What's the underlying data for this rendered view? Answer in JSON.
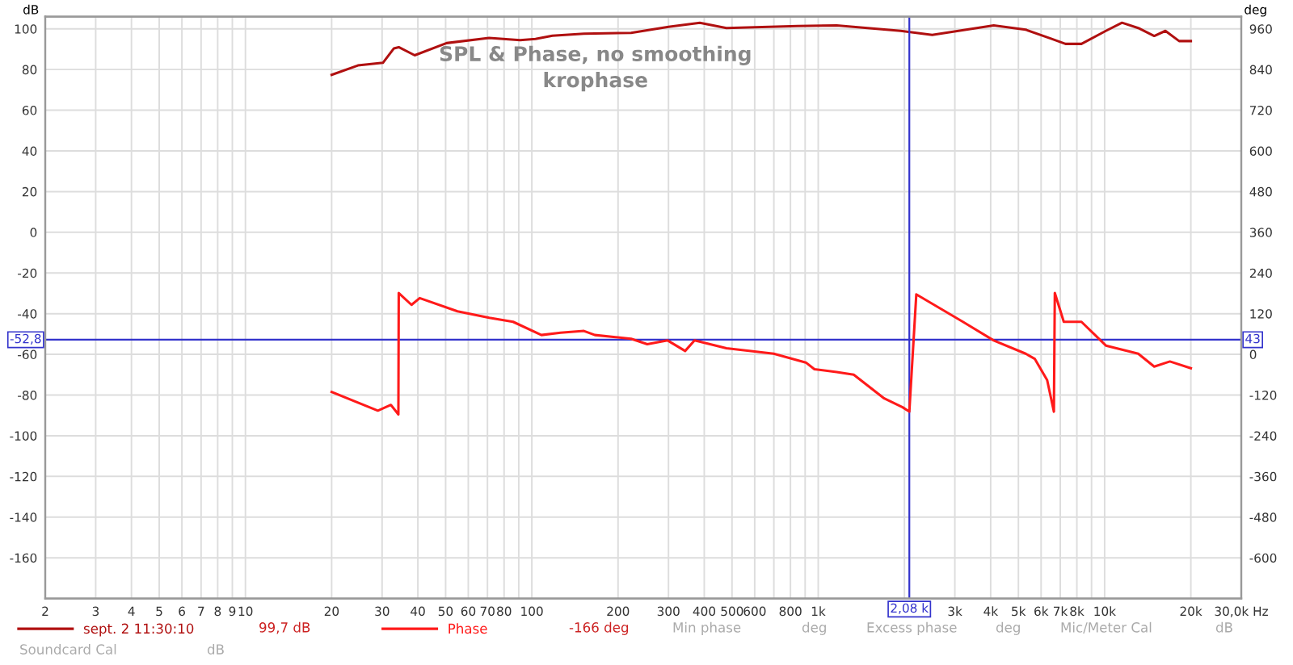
{
  "chart_data": {
    "type": "line",
    "title": "SPL & Phase, no smoothing",
    "subtitle": "krophase",
    "ylabel": "dB",
    "y2label": "deg",
    "log": "x",
    "grid": true,
    "legend": "bottom",
    "marker": "none",
    "line_style": "solid",
    "xlim": [
      2,
      30000
    ],
    "xticks": [
      2,
      3,
      4,
      5,
      6,
      7,
      8,
      9,
      10,
      20,
      30,
      40,
      50,
      60,
      70,
      80,
      {
        "value": 90,
        "label": null
      },
      100,
      200,
      300,
      400,
      500,
      600,
      {
        "value": 700,
        "label": null
      },
      800,
      {
        "value": 900,
        "label": null
      },
      {
        "value": 1000,
        "label": "1k"
      },
      {
        "value": 2000,
        "label": null
      },
      {
        "value": 3000,
        "label": "3k"
      },
      {
        "value": 4000,
        "label": "4k"
      },
      {
        "value": 5000,
        "label": "5k"
      },
      {
        "value": 6000,
        "label": "6k"
      },
      {
        "value": 7000,
        "label": "7k"
      },
      {
        "value": 8000,
        "label": "8k"
      },
      {
        "value": 9000,
        "label": null
      },
      {
        "value": 10000,
        "label": "10k"
      },
      {
        "value": 20000,
        "label": "20k"
      },
      {
        "value": 30000,
        "label": "30,0k Hz"
      }
    ],
    "ylim": [
      -180,
      106
    ],
    "yticks": [
      100,
      80,
      60,
      40,
      20,
      0,
      -20,
      -40,
      -60,
      -80,
      -100,
      -120,
      -140,
      -160
    ],
    "y2lim": [
      -720,
      996
    ],
    "y2ticks": [
      960,
      840,
      720,
      600,
      480,
      360,
      240,
      120,
      0,
      -120,
      -240,
      -360,
      -480,
      -600
    ],
    "series": [
      {
        "name": "sept. 2 11:30:10",
        "color": "#b01010",
        "x": [
          20,
          24.7,
          30.2,
          33,
          34.3,
          39,
          50.4,
          70.9,
          91,
          103,
          118,
          152,
          222,
          300,
          386,
          478,
          847,
          1160,
          1940,
          2500,
          4100,
          5300,
          6500,
          7300,
          8300,
          10100,
          11500,
          13100,
          14900,
          16300,
          18200,
          20000
        ],
        "values": [
          77.4,
          82,
          83.3,
          90.4,
          91,
          87,
          93,
          95.5,
          94.4,
          95,
          96.6,
          97.6,
          98,
          101,
          103,
          100.4,
          101.4,
          101.7,
          99,
          97,
          101.7,
          99.6,
          95.2,
          92.6,
          92.6,
          99,
          103,
          100.4,
          96.5,
          99,
          94,
          94
        ]
      },
      {
        "name": "Phase",
        "axis": "y2",
        "color": "#ff1a1a",
        "x": [
          20,
          29,
          32.2,
          34.2,
          34.3,
          38,
          40.6,
          55,
          71,
          86,
          108,
          126,
          152,
          166,
          222,
          253,
          298,
          343,
          370,
          478,
          699,
          905,
          970,
          1160,
          1330,
          1700,
          1970,
          2080,
          2200,
          3200,
          4100,
          5300,
          5700,
          6300,
          6650,
          6700,
          7200,
          8300,
          10100,
          13100,
          14900,
          16900,
          20000
        ],
        "values": [
          -111,
          -166,
          -149,
          -177,
          181,
          146,
          166,
          127,
          108,
          96,
          57,
          64,
          69,
          57,
          46,
          30,
          41,
          10,
          41,
          18,
          2,
          -24,
          -44,
          -52,
          -60,
          -130,
          -156,
          -169,
          177,
          96,
          41,
          2,
          -13,
          -76,
          -169,
          181,
          96,
          96,
          26,
          2,
          -36,
          -21,
          -41
        ]
      }
    ],
    "ref_lines": [
      {
        "axis": "x",
        "value": 2080,
        "label": "2,08 k",
        "color": "#3333cc"
      },
      {
        "axis": "y",
        "value": -52.8,
        "label": "-52,8",
        "color": "#3333cc"
      }
    ],
    "annotations": [
      "99,7 dB",
      "-166 deg",
      "Min phase",
      "deg",
      "Excess phase",
      "deg",
      "Mic/Meter Cal",
      "dB",
      "Soundcard Cal",
      "dB",
      "43"
    ]
  }
}
